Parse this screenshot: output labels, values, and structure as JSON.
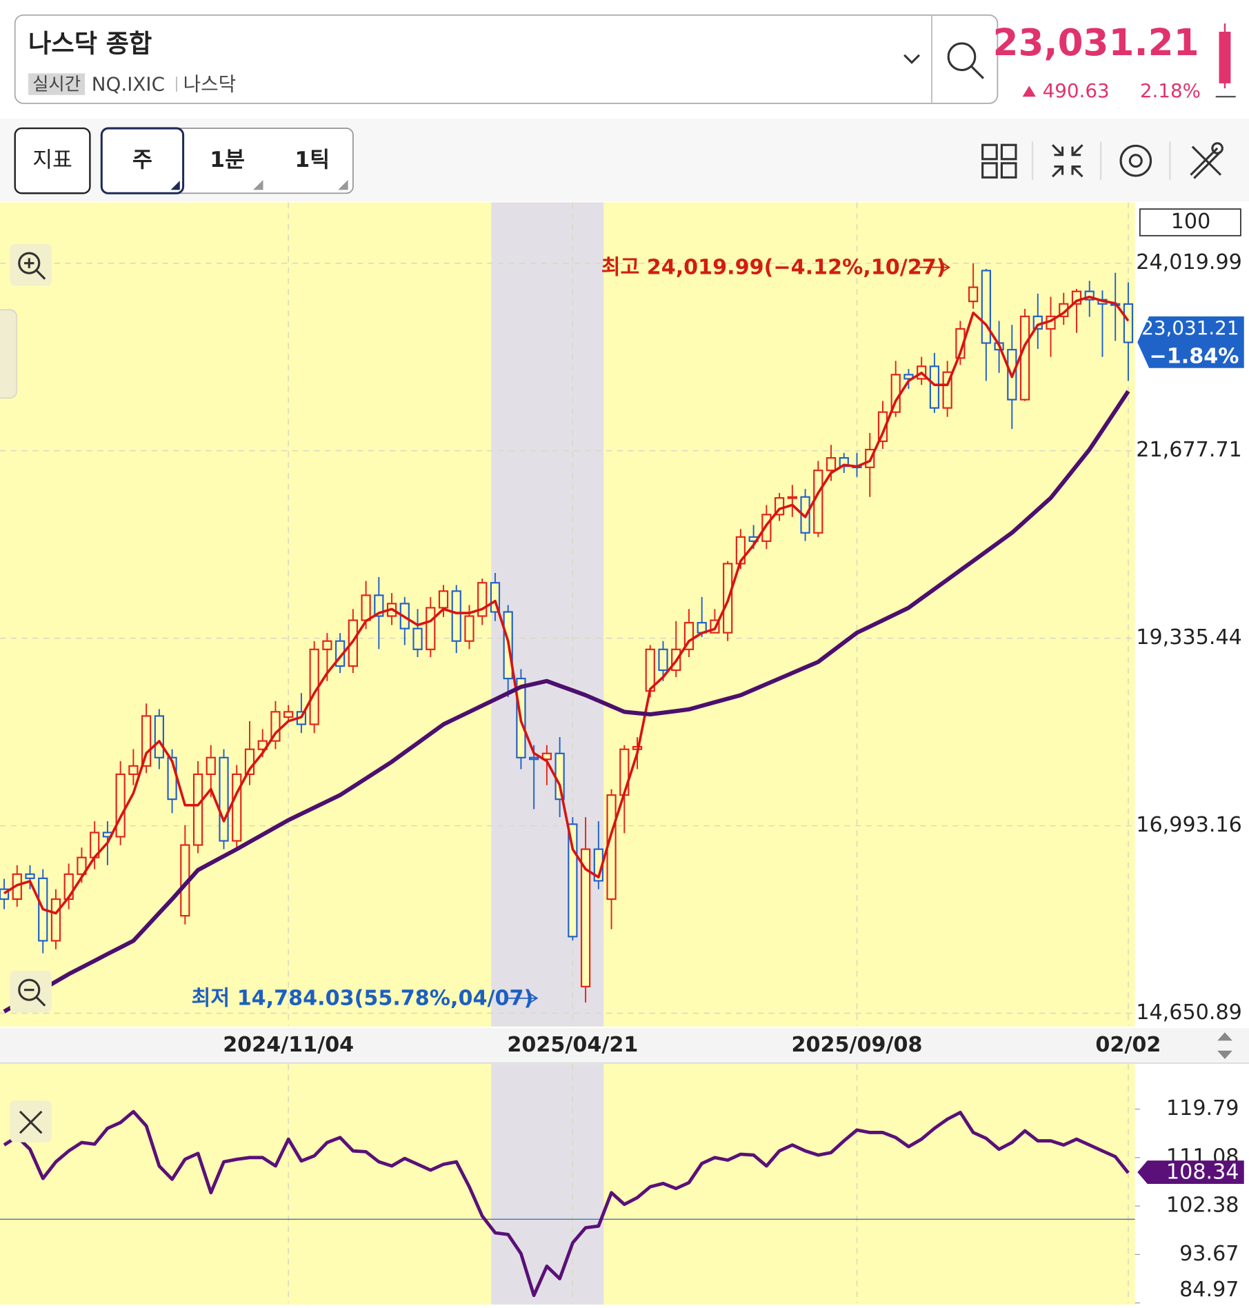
{
  "header": {
    "title": "나스닥 종합",
    "badge": "실시간",
    "code": "NQ.IXIC",
    "market": "나스닥",
    "price": "23,031.21",
    "change": "490.63",
    "change_pct": "2.18%"
  },
  "toolbar": {
    "buttons": [
      "지표",
      "주",
      "1분",
      "1틱"
    ]
  },
  "chart_data": [
    {
      "type": "candlestick",
      "categories": [
        null,
        null,
        null,
        null,
        null,
        null,
        null,
        null,
        null,
        null,
        null,
        null,
        null,
        null,
        null,
        null,
        null,
        null,
        null,
        null,
        null,
        null,
        "2024/11/04",
        null,
        null,
        null,
        null,
        null,
        null,
        null,
        null,
        null,
        null,
        null,
        null,
        null,
        null,
        null,
        null,
        null,
        null,
        null,
        null,
        null,
        "2025/04/21",
        null,
        null,
        null,
        null,
        null,
        null,
        null,
        null,
        null,
        null,
        null,
        null,
        null,
        null,
        null,
        null,
        null,
        null,
        null,
        null,
        null,
        "2025/09/08",
        null,
        null,
        null,
        null,
        null,
        null,
        null,
        null,
        null,
        null,
        null,
        null,
        null,
        null,
        null,
        null,
        null,
        null,
        null,
        null,
        "02/02"
      ],
      "open": [
        16200,
        16076,
        16388,
        16336,
        15556,
        16076,
        16388,
        16596,
        16908,
        16856,
        17636,
        17740,
        18364,
        17844,
        15868,
        16752,
        17636,
        17844,
        16804,
        17636,
        17948,
        18052,
        18350,
        18416,
        18260,
        19196,
        19300,
        18988,
        19560,
        19872,
        19612,
        19768,
        19456,
        19196,
        19716,
        19924,
        19300,
        19612,
        20028,
        19664,
        18832,
        17844,
        17823,
        17896,
        17012,
        14984,
        16700,
        16076,
        17376,
        17948,
        18676,
        19196,
        18936,
        19196,
        19529,
        19404,
        19404,
        20267,
        20600,
        20548,
        20880,
        21088,
        21100,
        20652,
        21432,
        21588,
        21484,
        21470,
        21796,
        22160,
        22628,
        22576,
        22732,
        22212,
        22836,
        23543,
        23928,
        23023,
        22940,
        22316,
        23356,
        23200,
        23356,
        23512,
        23668,
        23564,
        23512,
        23510
      ],
      "high": [
        16330,
        16500,
        16500,
        16450,
        16200,
        16520,
        16720,
        17050,
        17050,
        17800,
        17950,
        18520,
        18450,
        17950,
        17000,
        17800,
        18000,
        17950,
        17750,
        18300,
        18200,
        18550,
        18500,
        18650,
        19300,
        19400,
        19400,
        19700,
        20050,
        20100,
        19900,
        19850,
        19700,
        19850,
        20000,
        20000,
        19750,
        20080,
        20150,
        19750,
        18950,
        18000,
        18000,
        18100,
        17100,
        17100,
        17050,
        17450,
        18000,
        18100,
        19250,
        19300,
        19550,
        19700,
        19850,
        19700,
        20300,
        20700,
        20750,
        21000,
        21150,
        21250,
        21200,
        21550,
        21750,
        21650,
        21650,
        21900,
        22300,
        22800,
        22700,
        22850,
        22900,
        22800,
        23300,
        24019.99,
        23950,
        23300,
        23250,
        23450,
        23640,
        23600,
        23650,
        23700,
        23800,
        23680,
        23900,
        23780
      ],
      "low": [
        15950,
        15980,
        16200,
        15400,
        15450,
        15950,
        16280,
        16450,
        16500,
        16750,
        17500,
        17650,
        17700,
        17150,
        15760,
        16650,
        17350,
        16700,
        16700,
        17500,
        17850,
        17950,
        18300,
        18150,
        18150,
        18800,
        18900,
        18900,
        19450,
        19200,
        19500,
        19250,
        19100,
        19100,
        19600,
        19150,
        19200,
        19500,
        19550,
        18600,
        17700,
        17200,
        17500,
        17100,
        15560,
        14784.03,
        16200,
        15700,
        16900,
        17700,
        18600,
        18800,
        18850,
        19100,
        19350,
        19400,
        19300,
        20200,
        20450,
        20450,
        20800,
        20850,
        20550,
        20600,
        21300,
        21400,
        21350,
        21100,
        21700,
        22100,
        22450,
        22500,
        22150,
        22100,
        22750,
        23450,
        22550,
        22650,
        21950,
        22300,
        22950,
        22850,
        23250,
        23150,
        23350,
        22850,
        23050,
        22550
      ],
      "close": [
        16076,
        16388,
        16336,
        15556,
        16076,
        16388,
        16596,
        16908,
        16856,
        17636,
        17740,
        18364,
        17844,
        17324,
        16752,
        17636,
        17844,
        16804,
        17636,
        17948,
        18052,
        18416,
        18416,
        18260,
        19196,
        19300,
        18988,
        19560,
        19872,
        19612,
        19768,
        19456,
        19196,
        19716,
        19924,
        19300,
        19612,
        20028,
        19664,
        18832,
        17844,
        17823,
        17896,
        17324,
        15608,
        16700,
        16305,
        17376,
        17948,
        17980,
        19196,
        18936,
        19196,
        19529,
        19404,
        19560,
        20267,
        20600,
        20548,
        20880,
        21088,
        21100,
        20652,
        21432,
        21588,
        21484,
        21470,
        21692,
        22160,
        22628,
        22576,
        22732,
        22212,
        22659,
        23200,
        23720,
        23023,
        22940,
        22316,
        23356,
        23200,
        23356,
        23512,
        23668,
        23564,
        23512,
        23510,
        23031.21
      ],
      "up_color": "#e2231a",
      "down_color": "#2260c8",
      "lines": [
        {
          "color": "#d71313",
          "values": [
            16150,
            16250,
            16300,
            15950,
            15900,
            16100,
            16350,
            16600,
            16780,
            17100,
            17400,
            17900,
            18050,
            17800,
            17250,
            17250,
            17450,
            17050,
            17400,
            17700,
            17900,
            18150,
            18300,
            18350,
            18650,
            18900,
            19100,
            19300,
            19550,
            19650,
            19700,
            19600,
            19500,
            19550,
            19700,
            19650,
            19650,
            19700,
            19800,
            19300,
            18300,
            17900,
            17800,
            17500,
            16700,
            16450,
            16350,
            16900,
            17400,
            17900,
            18700,
            18850,
            19050,
            19300,
            19400,
            19450,
            19800,
            20300,
            20500,
            20750,
            20950,
            21000,
            20850,
            21150,
            21400,
            21500,
            21480,
            21550,
            21900,
            22300,
            22550,
            22650,
            22500,
            22500,
            22900,
            23400,
            23250,
            23000,
            22600,
            23000,
            23250,
            23300,
            23400,
            23550,
            23600,
            23550,
            23520,
            23300
          ]
        },
        {
          "color": "#4c0f6e",
          "values": [
            14672,
            14766,
            14859,
            14953,
            15046,
            15140,
            15223,
            15306,
            15390,
            15473,
            15556,
            15729,
            15903,
            16076,
            16258,
            16440,
            16527,
            16613,
            16700,
            16791,
            16882,
            16973,
            17064,
            17142,
            17220,
            17298,
            17376,
            17480,
            17584,
            17688,
            17792,
            17909,
            18026,
            18143,
            18260,
            18338,
            18416,
            18494,
            18572,
            18650,
            18728,
            18764,
            18800,
            18741,
            18683,
            18624,
            18555,
            18485,
            18416,
            18400,
            18384,
            18405,
            18426,
            18447,
            18491,
            18536,
            18580,
            18624,
            18693,
            18763,
            18832,
            18901,
            18971,
            19040,
            19161,
            19283,
            19404,
            19482,
            19560,
            19638,
            19716,
            19833,
            19950,
            20067,
            20184,
            20301,
            20418,
            20535,
            20652,
            20797,
            20943,
            21088,
            21289,
            21491,
            21692,
            21935,
            22177,
            22420
          ]
        }
      ],
      "ylim": [
        14495,
        24780
      ],
      "yticks": [
        {
          "value": 14650.89,
          "label": "14,650.89"
        },
        {
          "value": 16993.16,
          "label": "16,993.16"
        },
        {
          "value": 19335.44,
          "label": "19,335.44"
        },
        {
          "value": 21677.71,
          "label": "21,677.71"
        },
        {
          "value": 24019.99,
          "label": "24,019.99"
        }
      ],
      "grid": true,
      "scale_badge": "100",
      "high_label": "최고 24,019.99(−4.12%,10/27)",
      "low_label": "최저 14,784.03(55.78%,04/07)",
      "last_value_label": "23,031.21",
      "last_change_label": "−1.84%"
    },
    {
      "type": "line",
      "color": "#5a1078",
      "values": [
        113.34,
        114.84,
        112.59,
        107.33,
        110.33,
        112.28,
        113.79,
        113.49,
        116.34,
        117.39,
        119.34,
        116.79,
        109.58,
        107.18,
        110.78,
        111.83,
        104.78,
        110.33,
        110.78,
        111.08,
        111.08,
        109.58,
        114.39,
        110.48,
        111.38,
        113.79,
        114.69,
        112.28,
        112.13,
        110.33,
        109.58,
        110.93,
        109.88,
        108.83,
        109.88,
        110.33,
        105.83,
        100.58,
        97.57,
        97.27,
        93.82,
        86.32,
        91.57,
        89.32,
        95.77,
        98.48,
        98.78,
        104.78,
        102.68,
        103.88,
        105.83,
        106.43,
        105.53,
        106.58,
        110.03,
        111.08,
        110.63,
        111.68,
        111.53,
        109.58,
        112.28,
        113.34,
        112.28,
        111.53,
        111.98,
        114.09,
        116.04,
        115.59,
        115.59,
        114.69,
        113.04,
        114.39,
        116.34,
        117.99,
        119.19,
        115.59,
        114.54,
        112.59,
        113.79,
        115.89,
        114.09,
        114.09,
        113.34,
        114.39,
        113.34,
        112.28,
        111.23,
        108.34
      ],
      "value_labels": [
        null,
        null,
        null,
        null,
        null,
        null,
        null,
        null,
        null,
        null,
        null,
        null,
        null,
        null,
        null,
        null,
        null,
        null,
        null,
        null,
        null,
        null,
        null,
        null,
        null,
        null,
        null,
        null,
        null,
        null,
        null,
        null,
        null,
        null,
        null,
        null,
        null,
        null,
        null,
        null,
        null,
        null,
        null,
        null,
        null,
        null,
        null,
        null,
        null,
        null,
        null,
        null,
        null,
        null,
        null,
        null,
        null,
        null,
        null,
        null,
        null,
        null,
        null,
        null,
        null,
        null,
        null,
        null,
        null,
        null,
        null,
        null,
        null,
        null,
        null,
        null,
        null,
        null,
        null,
        null,
        null,
        null,
        null,
        null,
        null,
        null,
        null,
        "108.34"
      ],
      "ylim": [
        84.97,
        127.9
      ],
      "yticks": [
        119.79,
        111.08,
        102.38,
        93.67,
        84.97
      ],
      "hline": 100
    }
  ]
}
